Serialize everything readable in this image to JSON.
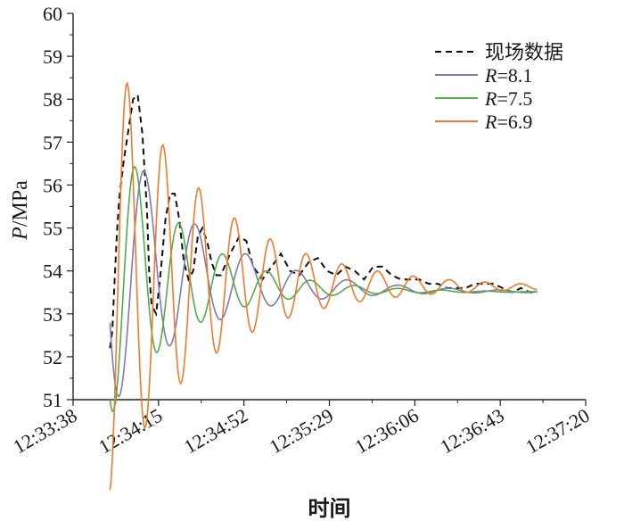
{
  "chart_data": {
    "type": "line",
    "xlabel": "时间",
    "ylabel_italic": "P",
    "ylabel_unit": "/MPa",
    "x_ticks": [
      "12:33:38",
      "12:34:15",
      "12:34:52",
      "12:35:29",
      "12:36:06",
      "12:36:43",
      "12:37:20"
    ],
    "xlim": [
      "12:33:38",
      "12:37:20"
    ],
    "ylim": [
      51,
      60
    ],
    "y_ticks": [
      51,
      52,
      53,
      54,
      55,
      56,
      57,
      58,
      59,
      60
    ],
    "legend_position": "top-right",
    "grid": false,
    "series": [
      {
        "name": "现场数据",
        "name_var": "",
        "name_eq": "",
        "name_val": "",
        "color": "#111111",
        "dash": true,
        "x": [
          "12:33:54",
          "12:33:55",
          "12:33:56",
          "12:33:57",
          "12:33:58",
          "12:34:00",
          "12:34:02",
          "12:34:04",
          "12:34:06",
          "12:34:08",
          "12:34:10",
          "12:34:11",
          "12:34:12",
          "12:34:14",
          "12:34:16",
          "12:34:18",
          "12:34:20",
          "12:34:22",
          "12:34:24",
          "12:34:26",
          "12:34:28",
          "12:34:30",
          "12:34:32",
          "12:34:34",
          "12:34:36",
          "12:34:38",
          "12:34:40",
          "12:34:42",
          "12:34:46",
          "12:34:50",
          "12:34:53",
          "12:34:56",
          "12:35:00",
          "12:35:04",
          "12:35:08",
          "12:35:12",
          "12:35:16",
          "12:35:20",
          "12:35:24",
          "12:35:28",
          "12:35:32",
          "12:35:36",
          "12:35:40",
          "12:35:44",
          "12:35:48",
          "12:35:52",
          "12:35:56",
          "12:36:00",
          "12:36:04",
          "12:36:08",
          "12:36:12",
          "12:36:16",
          "12:36:20",
          "12:36:24",
          "12:36:28",
          "12:36:32",
          "12:36:36",
          "12:36:40",
          "12:36:44",
          "12:36:48",
          "12:36:52",
          "12:36:56",
          "12:36:59"
        ],
        "values": [
          52.2,
          52.6,
          53.8,
          54.9,
          55.7,
          56.6,
          57.3,
          58.0,
          58.1,
          57.2,
          55.4,
          53.9,
          53.2,
          53.0,
          54.0,
          55.2,
          55.8,
          55.8,
          55.2,
          54.2,
          53.8,
          54.0,
          54.8,
          55.0,
          54.7,
          54.2,
          53.9,
          53.9,
          54.4,
          54.8,
          54.7,
          54.1,
          53.8,
          54.1,
          54.4,
          54.0,
          53.9,
          54.2,
          54.3,
          54.0,
          53.9,
          54.1,
          54.0,
          53.8,
          54.1,
          54.1,
          53.9,
          53.8,
          53.8,
          53.8,
          53.7,
          53.7,
          53.6,
          53.6,
          53.6,
          53.7,
          53.7,
          53.7,
          53.6,
          53.5,
          53.6,
          53.5,
          53.5
        ]
      },
      {
        "name": "",
        "name_var": "R",
        "name_eq": "=",
        "name_val": "8.1",
        "color": "#8078b8",
        "dash": false,
        "amp0": 4.2,
        "decay": 36,
        "period": 22,
        "peak": "12:33:47",
        "base": 53.5,
        "trend": 1.4,
        "trend_decay": 50
      },
      {
        "name": "",
        "name_var": "R",
        "name_eq": "=",
        "name_val": "7.5",
        "color": "#4fae45",
        "dash": false,
        "amp0": 4.6,
        "decay": 30,
        "period": 19,
        "peak": "12:33:46",
        "base": 53.5,
        "trend": 1.2,
        "trend_decay": 45
      },
      {
        "name": "",
        "name_var": "R",
        "name_eq": "=",
        "name_val": "6.9",
        "color": "#ef7a2c",
        "dash": false,
        "amp0": 6.3,
        "decay": 42,
        "period": 15.5,
        "peak": "12:33:46",
        "base": 53.6,
        "trend": 0.9,
        "trend_decay": 60
      }
    ]
  }
}
